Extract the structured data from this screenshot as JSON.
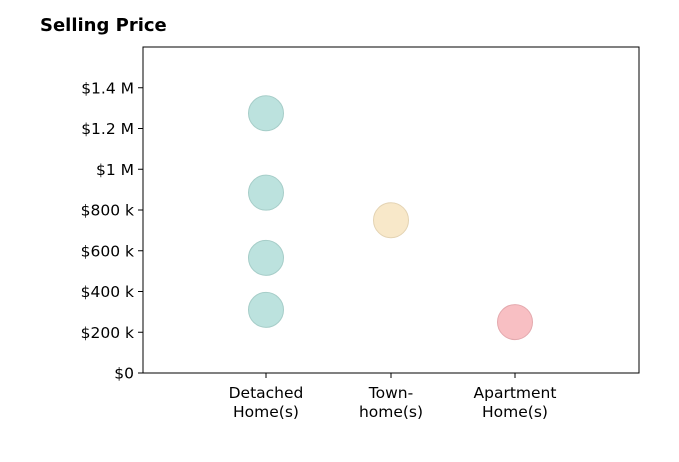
{
  "chart_data": {
    "type": "scatter",
    "title": "Selling Price",
    "xlabel": "",
    "ylabel": "",
    "categories": [
      "Detached\nHome(s)",
      "Town-\nhome(s)",
      "Apartment\nHome(s)"
    ],
    "ylim": [
      0,
      1600000
    ],
    "yticks": [
      {
        "value": 0,
        "label": "$0"
      },
      {
        "value": 200000,
        "label": "$200 k"
      },
      {
        "value": 400000,
        "label": "$400 k"
      },
      {
        "value": 600000,
        "label": "$600 k"
      },
      {
        "value": 800000,
        "label": "$800 k"
      },
      {
        "value": 1000000,
        "label": "$1 M"
      },
      {
        "value": 1200000,
        "label": "$1.2 M"
      },
      {
        "value": 1400000,
        "label": "$1.4 M"
      }
    ],
    "grid": false,
    "points": [
      {
        "category": 0,
        "value": 310000,
        "color": "#b5dfda"
      },
      {
        "category": 0,
        "value": 565000,
        "color": "#b5dfda"
      },
      {
        "category": 0,
        "value": 885000,
        "color": "#b5dfda"
      },
      {
        "category": 0,
        "value": 1275000,
        "color": "#b5dfda"
      },
      {
        "category": 1,
        "value": 750000,
        "color": "#f7e5c3"
      },
      {
        "category": 2,
        "value": 250000,
        "color": "#f7b8bd"
      }
    ]
  }
}
